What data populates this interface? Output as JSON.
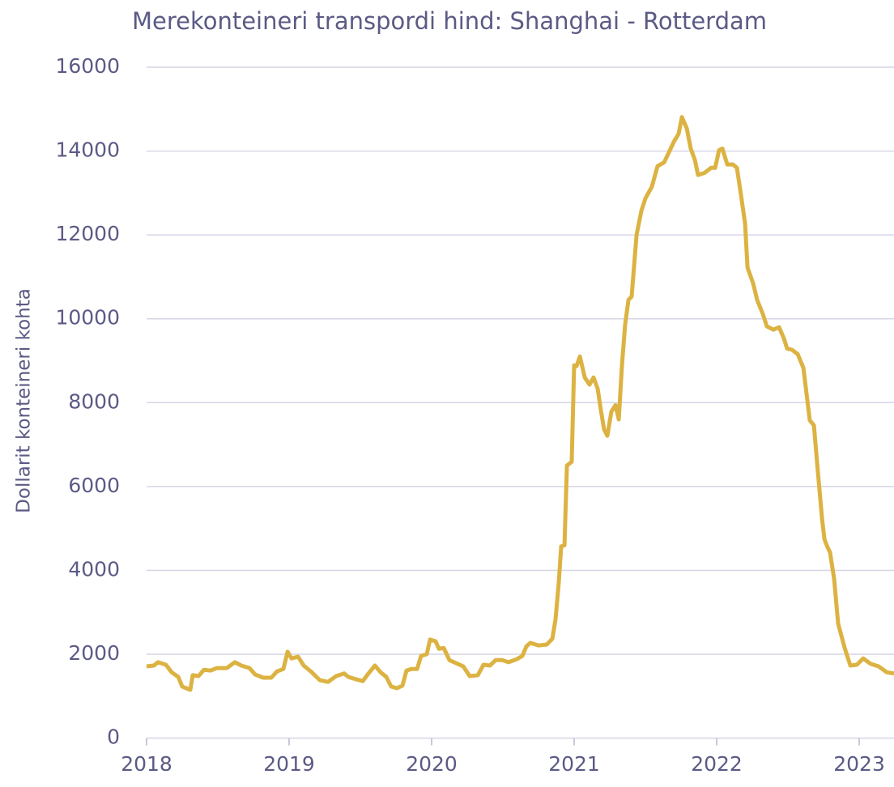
{
  "chart_data": {
    "type": "line",
    "title": "Merekonteineri transpordi hind: Shanghai - Rotterdam",
    "y_label": "Dollarit konteineri kohta",
    "xlim": [
      2018,
      2023.244
    ],
    "xticks": [
      2018,
      2019,
      2020,
      2021,
      2022,
      2023
    ],
    "ylim": [
      0,
      16000
    ],
    "yticks": [
      0,
      2000,
      4000,
      6000,
      8000,
      10000,
      12000,
      14000,
      16000
    ],
    "grid": true,
    "series": [
      {
        "name": "Shanghai - Rotterdam",
        "color": "#dcb342",
        "x": [
          2018.0,
          2018.051,
          2018.08,
          2018.136,
          2018.176,
          2018.222,
          2018.25,
          2018.307,
          2018.324,
          2018.364,
          2018.403,
          2018.449,
          2018.494,
          2018.563,
          2018.619,
          2018.665,
          2018.722,
          2018.761,
          2018.818,
          2018.875,
          2018.915,
          2018.96,
          2018.989,
          2019.017,
          2019.063,
          2019.102,
          2019.159,
          2019.216,
          2019.273,
          2019.33,
          2019.386,
          2019.415,
          2019.472,
          2019.517,
          2019.557,
          2019.602,
          2019.642,
          2019.682,
          2019.716,
          2019.756,
          2019.795,
          2019.824,
          2019.858,
          2019.898,
          2019.926,
          2019.966,
          2019.989,
          2020.028,
          2020.051,
          2020.085,
          2020.125,
          2020.182,
          2020.222,
          2020.267,
          2020.324,
          2020.364,
          2020.409,
          2020.449,
          2020.494,
          2020.54,
          2020.597,
          2020.636,
          2020.665,
          2020.693,
          2020.75,
          2020.807,
          2020.847,
          2020.869,
          2020.892,
          2020.909,
          2020.932,
          2020.949,
          2020.983,
          2021.0,
          2021.017,
          2021.04,
          2021.074,
          2021.108,
          2021.136,
          2021.165,
          2021.188,
          2021.21,
          2021.233,
          2021.261,
          2021.29,
          2021.313,
          2021.335,
          2021.358,
          2021.381,
          2021.403,
          2021.438,
          2021.472,
          2021.5,
          2021.545,
          2021.585,
          2021.631,
          2021.665,
          2021.699,
          2021.733,
          2021.756,
          2021.79,
          2021.818,
          2021.847,
          2021.869,
          2021.915,
          2021.96,
          2021.989,
          2022.017,
          2022.04,
          2022.074,
          2022.114,
          2022.142,
          2022.17,
          2022.199,
          2022.216,
          2022.256,
          2022.284,
          2022.324,
          2022.352,
          2022.398,
          2022.438,
          2022.472,
          2022.494,
          2022.528,
          2022.568,
          2022.608,
          2022.653,
          2022.682,
          2022.705,
          2022.739,
          2022.756,
          2022.778,
          2022.795,
          2022.824,
          2022.852,
          2022.898,
          2022.938,
          2022.983,
          2023.028,
          2023.08,
          2023.136,
          2023.193,
          2023.244
        ],
        "values": [
          1710,
          1730,
          1810,
          1750,
          1570,
          1460,
          1230,
          1150,
          1500,
          1480,
          1630,
          1610,
          1670,
          1670,
          1810,
          1730,
          1670,
          1520,
          1440,
          1440,
          1590,
          1650,
          2060,
          1900,
          1940,
          1730,
          1570,
          1380,
          1340,
          1480,
          1540,
          1460,
          1400,
          1360,
          1540,
          1730,
          1570,
          1460,
          1230,
          1190,
          1250,
          1610,
          1650,
          1650,
          1960,
          2000,
          2350,
          2310,
          2130,
          2150,
          1860,
          1770,
          1710,
          1480,
          1500,
          1750,
          1730,
          1860,
          1860,
          1810,
          1880,
          1960,
          2190,
          2270,
          2210,
          2230,
          2370,
          2830,
          3700,
          4570,
          4600,
          6500,
          6590,
          8890,
          8870,
          9100,
          8600,
          8430,
          8600,
          8330,
          7810,
          7360,
          7210,
          7790,
          7940,
          7600,
          8870,
          9870,
          10450,
          10530,
          12000,
          12580,
          12870,
          13150,
          13640,
          13730,
          13970,
          14220,
          14410,
          14810,
          14540,
          14060,
          13790,
          13430,
          13480,
          13600,
          13600,
          14020,
          14060,
          13680,
          13680,
          13600,
          12960,
          12270,
          11220,
          10840,
          10450,
          10110,
          9820,
          9740,
          9800,
          9530,
          9290,
          9260,
          9160,
          8830,
          7580,
          7460,
          6550,
          5240,
          4740,
          4550,
          4430,
          3790,
          2730,
          2150,
          1730,
          1750,
          1900,
          1770,
          1710,
          1570,
          1540
        ]
      }
    ]
  }
}
